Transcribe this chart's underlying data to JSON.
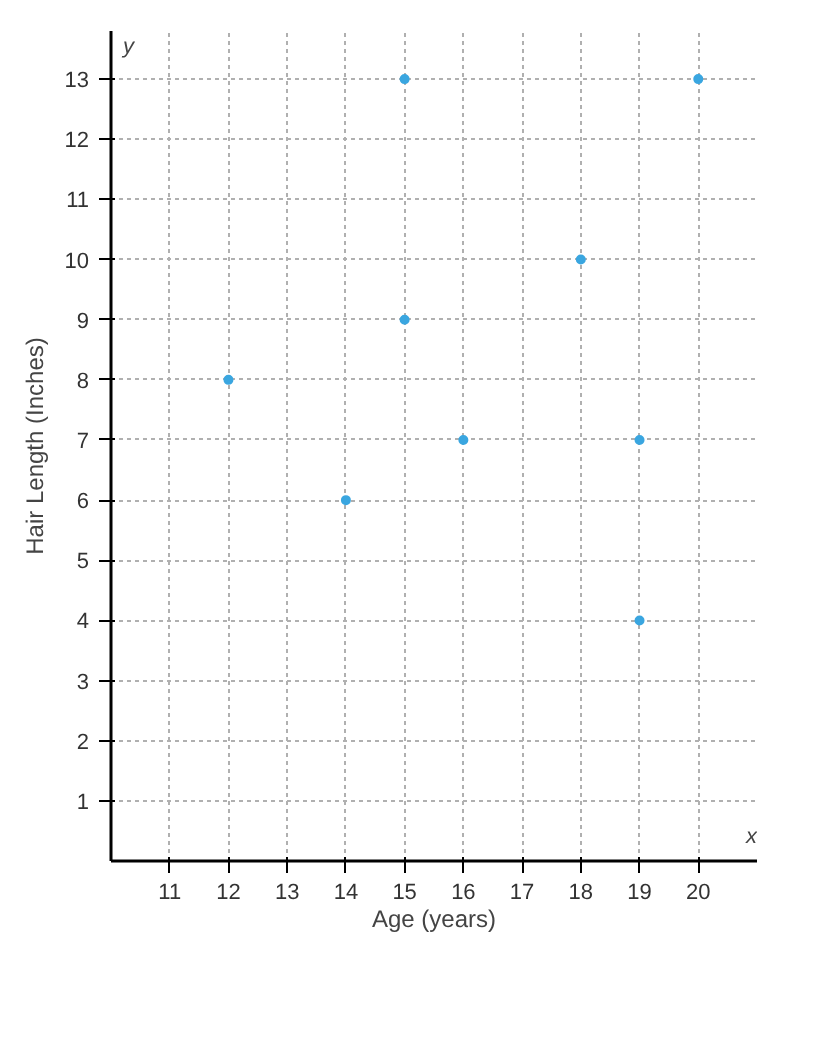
{
  "chart_data": {
    "type": "scatter",
    "xlabel": "Age (years)",
    "ylabel": "Hair Length (Inches)",
    "x": [
      12,
      14,
      15,
      15,
      16,
      18,
      19,
      19,
      20
    ],
    "series": [
      {
        "color": "#3aa6e0",
        "values": [
          8,
          6,
          13,
          9,
          7,
          10,
          7,
          4,
          13
        ]
      }
    ],
    "xlim": [
      10,
      21
    ],
    "ylim": [
      0,
      13.8
    ],
    "xticks": [
      11,
      12,
      13,
      14,
      15,
      16,
      17,
      18,
      19,
      20
    ],
    "yticks": [
      1,
      2,
      3,
      4,
      5,
      6,
      7,
      8,
      9,
      10,
      11,
      12,
      13
    ],
    "grid": true,
    "marker": "circle",
    "annotations": [
      "y",
      "x"
    ]
  }
}
